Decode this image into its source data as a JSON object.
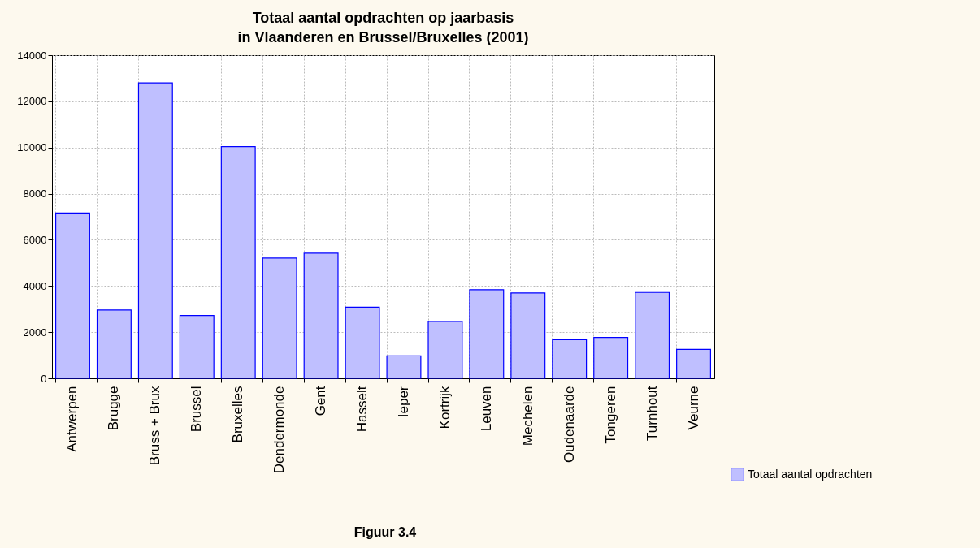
{
  "chart_data": {
    "type": "bar",
    "title": [
      "Totaal aantal opdrachten op jaarbasis",
      "in Vlaanderen en Brussel/Bruxelles (2001)"
    ],
    "categories": [
      "Antwerpen",
      "Brugge",
      "Bruss + Brux",
      "Brussel",
      "Bruxelles",
      "Dendermonde",
      "Gent",
      "Hasselt",
      "Ieper",
      "Kortrijk",
      "Leuven",
      "Mechelen",
      "Oudenaarde",
      "Tongeren",
      "Turnhout",
      "Veurne"
    ],
    "series": [
      {
        "name": "Totaal aantal opdrachten",
        "color": "#bfbfff",
        "values": [
          7160,
          2960,
          12800,
          2720,
          10040,
          5210,
          5420,
          3080,
          970,
          2470,
          3840,
          3700,
          1670,
          1770,
          3720,
          1250
        ]
      }
    ],
    "ylim": [
      0,
      14000
    ],
    "yticks": [
      0,
      2000,
      4000,
      6000,
      8000,
      10000,
      12000,
      14000
    ],
    "grid": true,
    "legend": "bottom right",
    "annotations": [
      "Figuur 3.4"
    ]
  }
}
